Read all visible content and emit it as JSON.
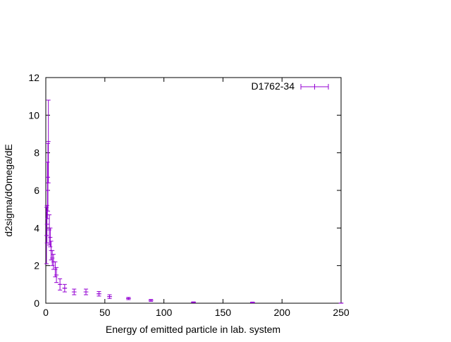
{
  "chart_data": {
    "type": "scatter",
    "xlabel": "Energy of emitted particle in lab. system",
    "ylabel": "d2sigma/dOmega/dE",
    "xlim": [
      0,
      250
    ],
    "ylim": [
      0,
      12
    ],
    "xticks": [
      "0",
      "50",
      "100",
      "150",
      "200",
      "250"
    ],
    "yticks": [
      "0",
      "2",
      "4",
      "6",
      "8",
      "10",
      "12"
    ],
    "grid": false,
    "legend_position": "top-right",
    "series": [
      {
        "name": "D1762-34",
        "color": "#9400d3",
        "points": [
          {
            "x": 0.6,
            "y": 3.6,
            "err": 1.5,
            "xerr": 0.5
          },
          {
            "x": 1.0,
            "y": 4.2,
            "err": 1.0,
            "xerr": 0.5
          },
          {
            "x": 1.4,
            "y": 6.0,
            "err": 1.5,
            "xerr": 0.5
          },
          {
            "x": 1.8,
            "y": 6.7,
            "err": 1.8,
            "xerr": 0.5
          },
          {
            "x": 2.2,
            "y": 8.6,
            "err": 2.2,
            "xerr": 0.5
          },
          {
            "x": 3.0,
            "y": 3.9,
            "err": 0.8,
            "xerr": 0.8
          },
          {
            "x": 3.8,
            "y": 3.5,
            "err": 0.5,
            "xerr": 0.8
          },
          {
            "x": 4.5,
            "y": 2.8,
            "err": 0.5,
            "xerr": 0.8
          },
          {
            "x": 5.5,
            "y": 2.4,
            "err": 0.4,
            "xerr": 1.0
          },
          {
            "x": 6.5,
            "y": 2.2,
            "err": 0.4,
            "xerr": 1.0
          },
          {
            "x": 8.0,
            "y": 1.8,
            "err": 0.4,
            "xerr": 1.0
          },
          {
            "x": 9.0,
            "y": 1.5,
            "err": 0.4,
            "xerr": 1.0
          },
          {
            "x": 12,
            "y": 1.0,
            "err": 0.3,
            "xerr": 1.5
          },
          {
            "x": 16,
            "y": 0.8,
            "err": 0.2,
            "xerr": 2.0
          },
          {
            "x": 24,
            "y": 0.6,
            "err": 0.15,
            "xerr": 2.0
          },
          {
            "x": 34,
            "y": 0.6,
            "err": 0.15,
            "xerr": 2.0
          },
          {
            "x": 45,
            "y": 0.5,
            "err": 0.12,
            "xerr": 2.0
          },
          {
            "x": 54,
            "y": 0.35,
            "err": 0.1,
            "xerr": 2.0
          },
          {
            "x": 70,
            "y": 0.25,
            "err": 0.06,
            "xerr": 2.0
          },
          {
            "x": 89,
            "y": 0.15,
            "err": 0.05,
            "xerr": 2.0
          },
          {
            "x": 125,
            "y": 0.05,
            "err": 0.02,
            "xerr": 2.0
          },
          {
            "x": 175,
            "y": 0.04,
            "err": 0.02,
            "xerr": 2.0
          },
          {
            "x": 250,
            "y": 0.0,
            "err": 0.01,
            "xerr": 2.0
          }
        ]
      }
    ]
  }
}
